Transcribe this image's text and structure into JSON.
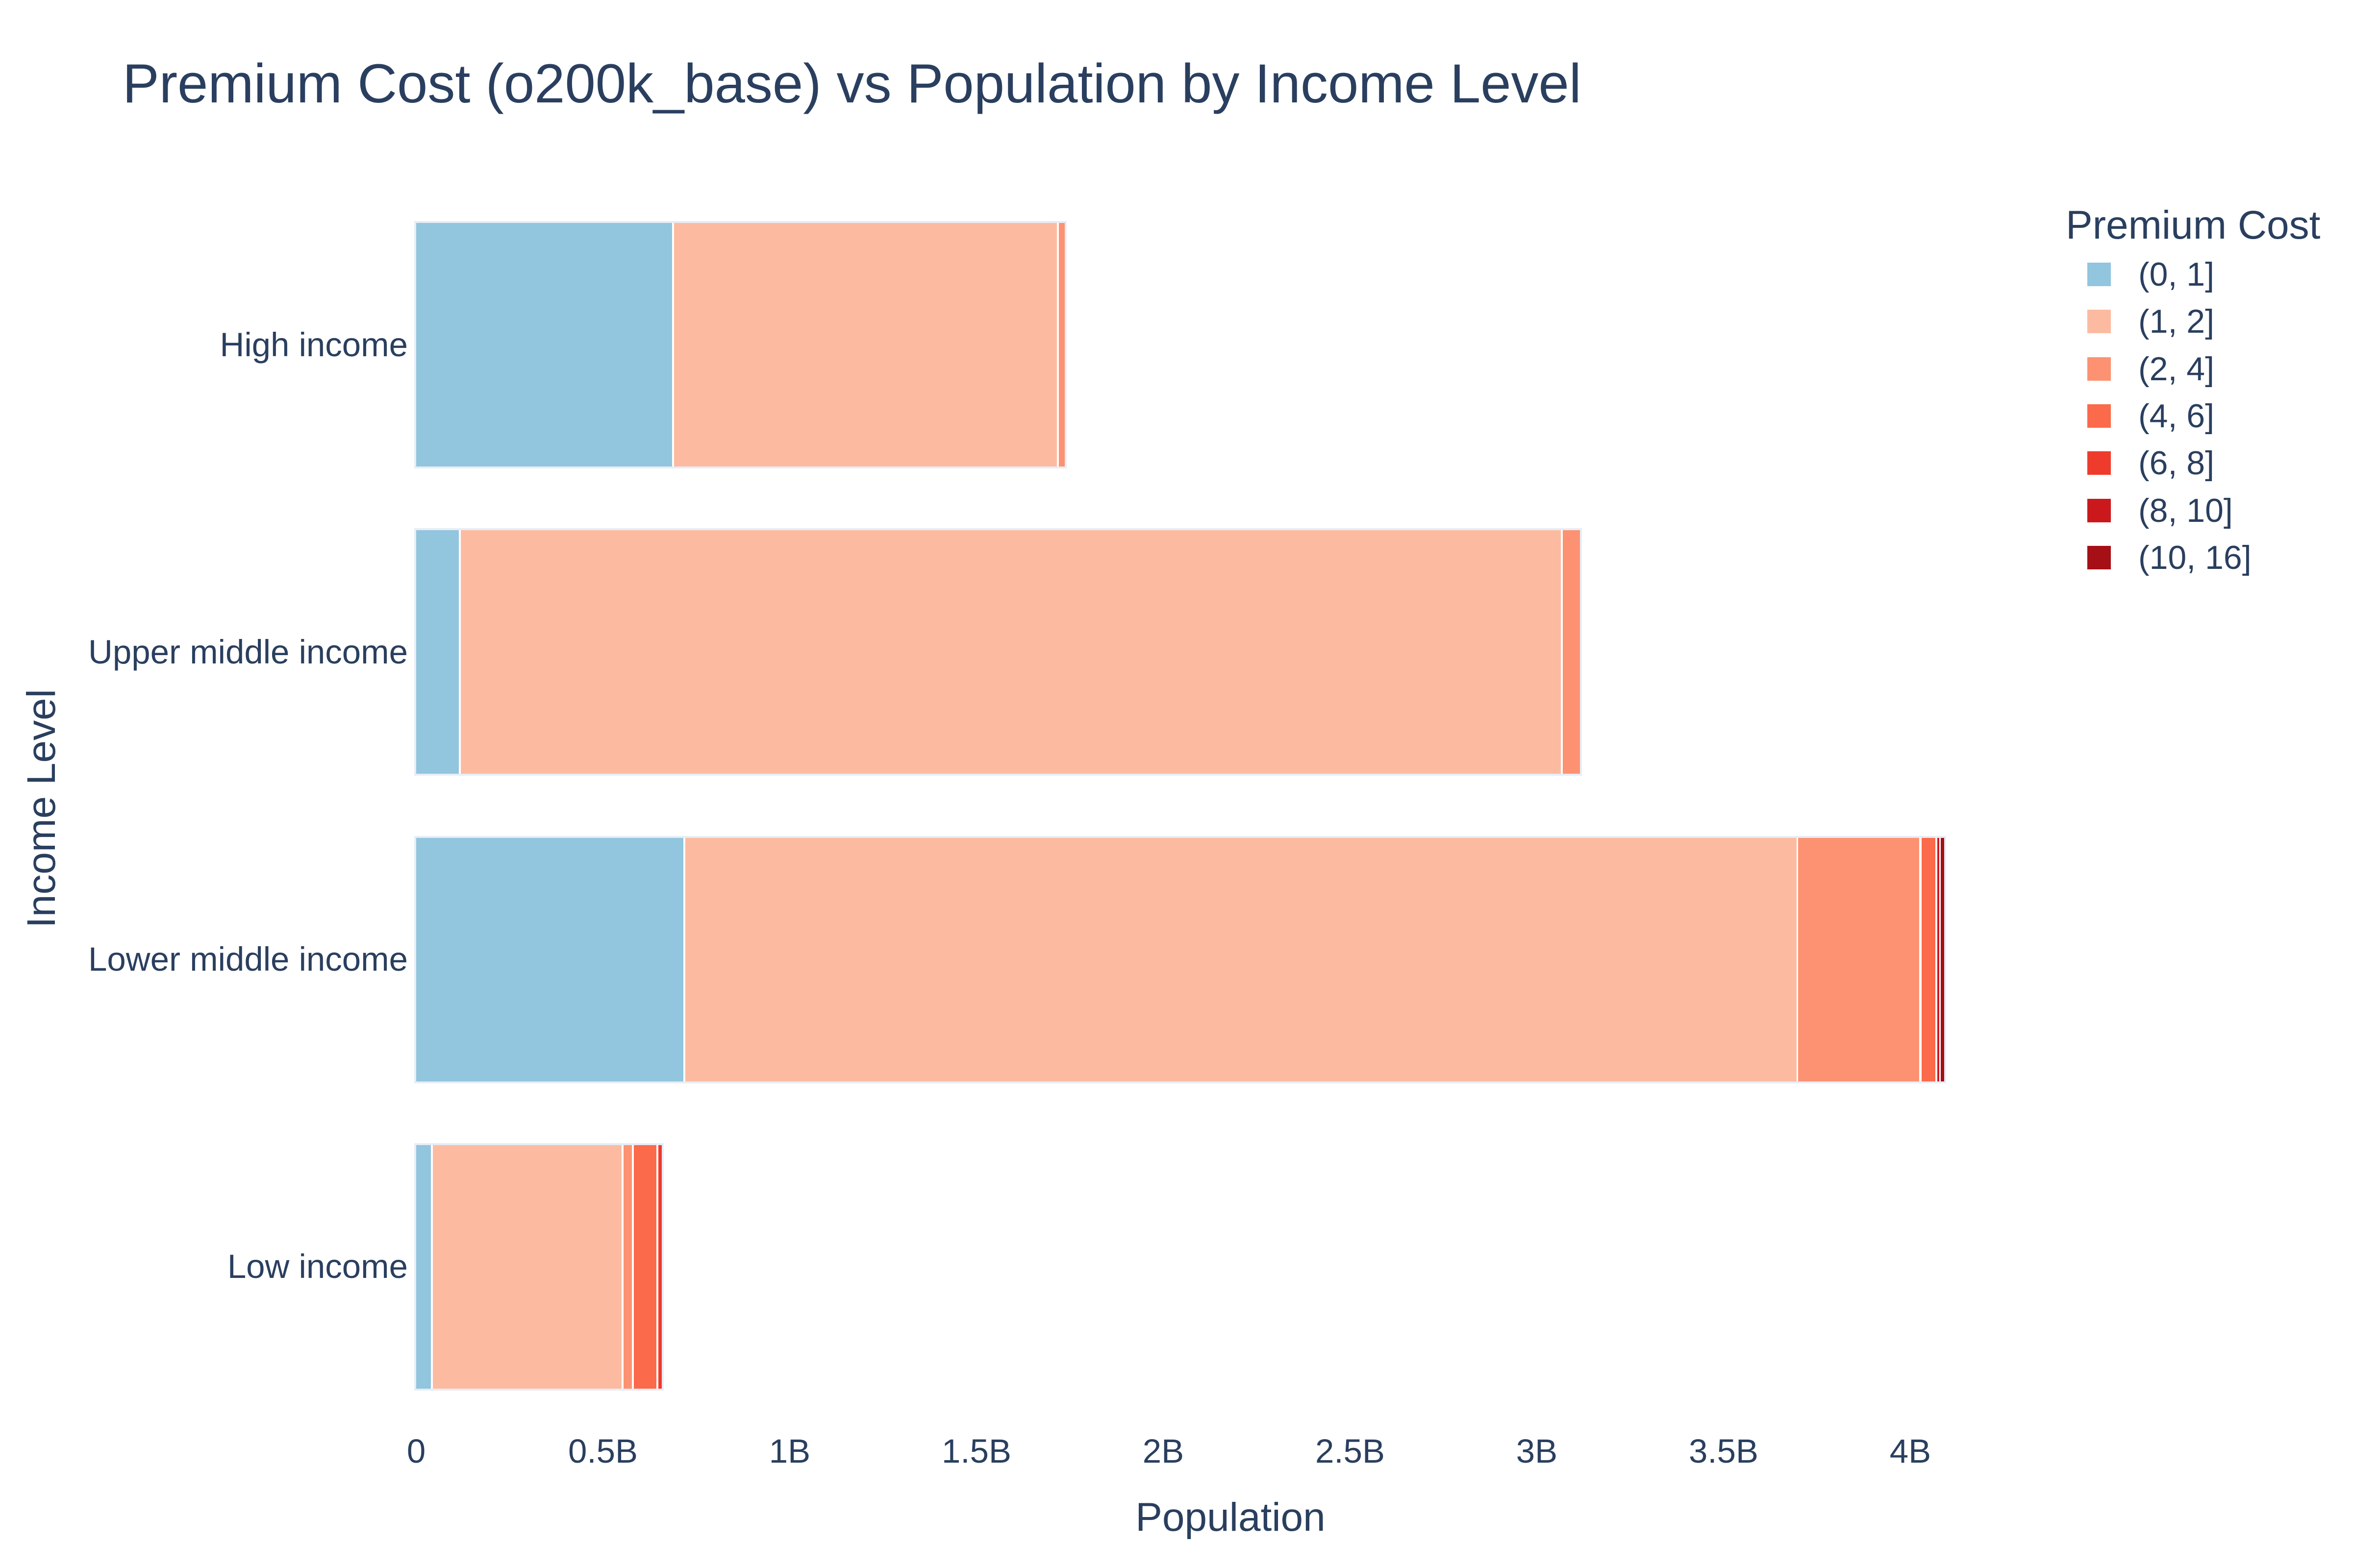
{
  "chart_data": {
    "type": "bar",
    "orientation": "horizontal-stacked",
    "title": "Premium Cost (o200k_base) vs Population by Income Level",
    "xlabel": "Population",
    "ylabel": "Income Level",
    "legend_title": "Premium Cost",
    "grid": false,
    "legend_position": "right",
    "background_color": "#ffffff",
    "text_color": "#2a3f5f",
    "bar_outline_color": "#e7edf6",
    "categories": [
      "High income",
      "Upper middle income",
      "Lower middle income",
      "Low income"
    ],
    "series": [
      {
        "name": "(0, 1]",
        "color": "#92c5de",
        "values_millions": [
          690,
          120,
          720,
          45
        ]
      },
      {
        "name": "(1, 2]",
        "color": "#fcbba1",
        "values_millions": [
          1030,
          2950,
          2980,
          510
        ]
      },
      {
        "name": "(2, 4]",
        "color": "#fc9272",
        "values_millions": [
          16,
          46,
          330,
          28
        ]
      },
      {
        "name": "(4, 6]",
        "color": "#fb6a4a",
        "values_millions": [
          0,
          0,
          42,
          65
        ]
      },
      {
        "name": "(6, 8]",
        "color": "#ef3b2c",
        "values_millions": [
          0,
          0,
          0,
          9
        ]
      },
      {
        "name": "(8, 10]",
        "color": "#cb181d",
        "values_millions": [
          0,
          0,
          10,
          0
        ]
      },
      {
        "name": "(10, 16]",
        "color": "#a50f15",
        "values_millions": [
          0,
          0,
          9,
          0
        ]
      }
    ],
    "x_ticks": [
      {
        "value_millions": 0,
        "label": "0"
      },
      {
        "value_millions": 500,
        "label": "0.5B"
      },
      {
        "value_millions": 1000,
        "label": "1B"
      },
      {
        "value_millions": 1500,
        "label": "1.5B"
      },
      {
        "value_millions": 2000,
        "label": "2B"
      },
      {
        "value_millions": 2500,
        "label": "2.5B"
      },
      {
        "value_millions": 3000,
        "label": "3B"
      },
      {
        "value_millions": 3500,
        "label": "3.5B"
      },
      {
        "value_millions": 4000,
        "label": "4B"
      }
    ],
    "xlim_millions": [
      0,
      4330
    ]
  }
}
